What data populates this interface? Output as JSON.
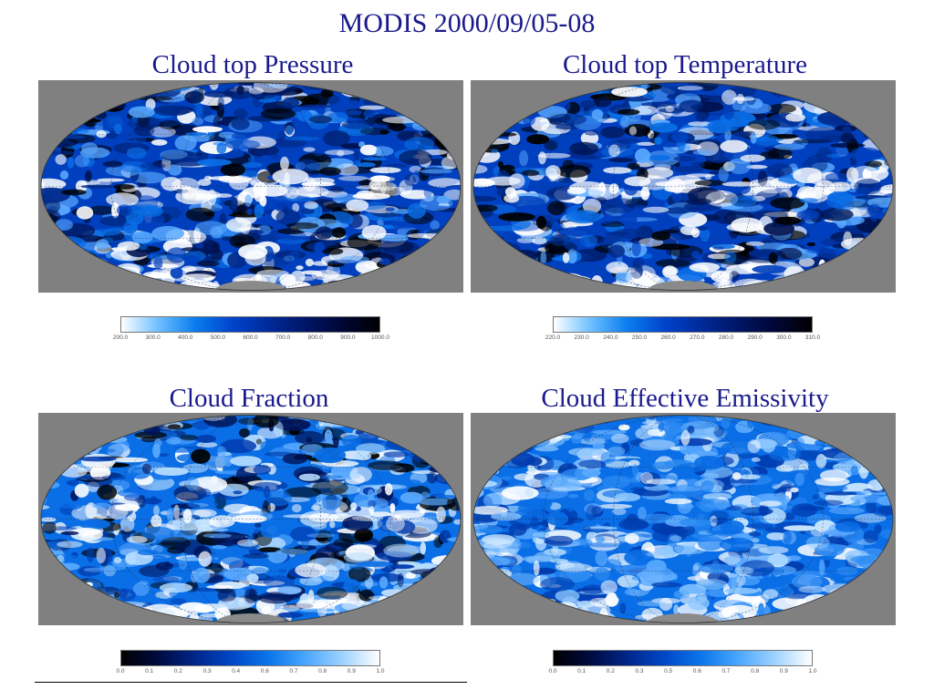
{
  "title": "MODIS 2000/09/05-08",
  "panels": [
    {
      "id": "pressure",
      "title": "Cloud top Pressure",
      "colorbar": {
        "ticks": [
          "200.0",
          "300.0",
          "400.0",
          "500.0",
          "600.0",
          "700.0",
          "800.0",
          "900.0",
          "1000.0"
        ],
        "gradient": [
          "#ffffff",
          "#6ec0ff",
          "#0a7df0",
          "#0044cc",
          "#002a9a",
          "#001566",
          "#000735",
          "#000000"
        ]
      },
      "palette": [
        "#ffffff",
        "#5aa9ff",
        "#0a6ee6",
        "#0040bf",
        "#002a8a",
        "#00124e",
        "#000000"
      ]
    },
    {
      "id": "temperature",
      "title": "Cloud top Temperature",
      "colorbar": {
        "ticks": [
          "220.0",
          "230.0",
          "240.0",
          "250.0",
          "260.0",
          "270.0",
          "280.0",
          "290.0",
          "300.0",
          "310.0"
        ],
        "gradient": [
          "#ffffff",
          "#6ec0ff",
          "#0a7df0",
          "#0044cc",
          "#002a9a",
          "#001566",
          "#000735",
          "#000000"
        ]
      },
      "palette": [
        "#ffffff",
        "#5aa9ff",
        "#0a6ee6",
        "#0040bf",
        "#002a8a",
        "#00124e",
        "#000000"
      ]
    },
    {
      "id": "fraction",
      "title": "Cloud Fraction",
      "colorbar": {
        "ticks": [
          "0.0",
          "0.1",
          "0.2",
          "0.3",
          "0.4",
          "0.6",
          "0.7",
          "0.8",
          "0.9",
          "1.0"
        ],
        "gradient": [
          "#000000",
          "#000b40",
          "#00268a",
          "#0047c8",
          "#0a76ea",
          "#4aa6ff",
          "#9ed2ff",
          "#ffffff"
        ]
      },
      "palette": [
        "#000000",
        "#001256",
        "#003aad",
        "#0a6ee6",
        "#5aa9ff",
        "#b8deff",
        "#ffffff"
      ]
    },
    {
      "id": "emissivity",
      "title": "Cloud Effective Emissivity",
      "colorbar": {
        "ticks": [
          "0.0",
          "0.1",
          "0.2",
          "0.3",
          "0.5",
          "0.6",
          "0.7",
          "0.8",
          "0.9",
          "1.0"
        ],
        "gradient": [
          "#000000",
          "#000b40",
          "#00268a",
          "#0047c8",
          "#0a76ea",
          "#4aa6ff",
          "#9ed2ff",
          "#ffffff"
        ]
      },
      "palette": [
        "#003aad",
        "#0a6ee6",
        "#2b8af2",
        "#5aa9ff",
        "#8ec8ff",
        "#cfe9ff",
        "#ffffff"
      ]
    }
  ]
}
